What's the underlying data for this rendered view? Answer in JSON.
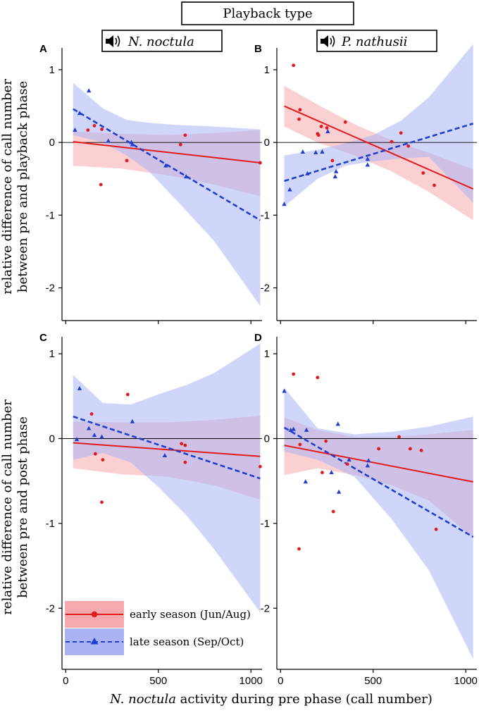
{
  "chart_data": {
    "type": "scatter",
    "header": "Playback type",
    "columns": [
      {
        "species": "N. noctula",
        "icon": "speaker-icon"
      },
      {
        "species": "P. nathusii",
        "icon": "speaker-icon"
      }
    ],
    "rows": [
      {
        "ylabel_line1": "relative difference of call number",
        "ylabel_line2": "between pre and playback phase"
      },
      {
        "ylabel_line1": "relative difference of call number",
        "ylabel_line2": "between pre and post phase"
      }
    ],
    "xlabel_italic": "N. noctula",
    "xlabel_rest": " activity during pre phase (call number)",
    "xlim": [
      -20,
      1060
    ],
    "x_ticks": [
      0,
      500,
      1000
    ],
    "x_tick_labels": [
      "0",
      "500",
      "1000"
    ],
    "y_ticks": [
      1,
      0,
      -1,
      -2
    ],
    "y_tick_labels": [
      "1",
      "0",
      "-1",
      "-2"
    ],
    "legend": {
      "location": "bottom-left",
      "entries": [
        {
          "key": "early",
          "label": "early season (Jun/Aug)"
        },
        {
          "key": "late",
          "label": "late season (Sep/Oct)"
        }
      ]
    },
    "colors": {
      "early": "#e31a1c",
      "late": "#1f3fd0",
      "early_band": "#f8a9ae",
      "late_band": "#aab4f4"
    },
    "panels": [
      {
        "letter": "A",
        "ylim": [
          -2.45,
          1.3
        ],
        "early": {
          "points": [
            [
              120,
              0.17
            ],
            [
              155,
              0.23
            ],
            [
              195,
              0.18
            ],
            [
              190,
              -0.58
            ],
            [
              330,
              -0.25
            ],
            [
              620,
              -0.03
            ],
            [
              645,
              0.1
            ],
            [
              1050,
              -0.28
            ]
          ],
          "fit": [
            [
              40,
              0.01
            ],
            [
              1050,
              -0.28
            ]
          ],
          "band_upper": [
            [
              40,
              0.15
            ],
            [
              300,
              0.12
            ],
            [
              550,
              0.1
            ],
            [
              800,
              0.13
            ],
            [
              1050,
              0.17
            ]
          ],
          "band_lower": [
            [
              40,
              -0.32
            ],
            [
              300,
              -0.36
            ],
            [
              550,
              -0.45
            ],
            [
              800,
              -0.58
            ],
            [
              1050,
              -0.74
            ]
          ]
        },
        "late": {
          "points": [
            [
              50,
              0.17
            ],
            [
              75,
              0.4
            ],
            [
              125,
              0.71
            ],
            [
              230,
              0.02
            ],
            [
              355,
              0.0
            ],
            [
              360,
              -0.03
            ],
            [
              540,
              -0.32
            ],
            [
              650,
              -0.47
            ]
          ],
          "fit": [
            [
              40,
              0.46
            ],
            [
              1050,
              -1.07
            ]
          ],
          "band_upper": [
            [
              40,
              0.82
            ],
            [
              200,
              0.47
            ],
            [
              330,
              0.31
            ],
            [
              450,
              0.27
            ],
            [
              600,
              0.24
            ],
            [
              800,
              0.22
            ],
            [
              1050,
              0.18
            ]
          ],
          "band_lower": [
            [
              40,
              0.1
            ],
            [
              200,
              0.0
            ],
            [
              330,
              -0.18
            ],
            [
              450,
              -0.4
            ],
            [
              600,
              -0.8
            ],
            [
              800,
              -1.35
            ],
            [
              1050,
              -2.25
            ]
          ]
        }
      },
      {
        "letter": "B",
        "ylim": [
          -2.45,
          1.3
        ],
        "early": {
          "points": [
            [
              70,
              1.06
            ],
            [
              100,
              0.32
            ],
            [
              105,
              0.45
            ],
            [
              200,
              0.12
            ],
            [
              205,
              0.1
            ],
            [
              220,
              0.22
            ],
            [
              250,
              0.2
            ],
            [
              280,
              -0.25
            ],
            [
              350,
              0.28
            ],
            [
              600,
              0.01
            ],
            [
              650,
              0.13
            ],
            [
              690,
              -0.05
            ],
            [
              770,
              -0.42
            ],
            [
              830,
              -0.59
            ]
          ],
          "fit": [
            [
              20,
              0.5
            ],
            [
              1040,
              -0.64
            ]
          ],
          "band_upper": [
            [
              20,
              0.78
            ],
            [
              200,
              0.52
            ],
            [
              400,
              0.25
            ],
            [
              600,
              0.03
            ],
            [
              800,
              -0.14
            ],
            [
              1040,
              -0.37
            ]
          ],
          "band_lower": [
            [
              20,
              0.22
            ],
            [
              200,
              0.0
            ],
            [
              400,
              -0.18
            ],
            [
              600,
              -0.4
            ],
            [
              800,
              -0.68
            ],
            [
              1040,
              -1.07
            ]
          ]
        },
        "late": {
          "points": [
            [
              20,
              -0.85
            ],
            [
              50,
              -0.65
            ],
            [
              120,
              -0.13
            ],
            [
              145,
              -0.43
            ],
            [
              190,
              -0.14
            ],
            [
              225,
              -0.13
            ],
            [
              255,
              0.15
            ],
            [
              295,
              -0.47
            ],
            [
              300,
              -0.4
            ],
            [
              470,
              -0.31
            ],
            [
              470,
              -0.23
            ]
          ],
          "fit": [
            [
              20,
              -0.53
            ],
            [
              1040,
              0.26
            ]
          ],
          "band_upper": [
            [
              20,
              -0.18
            ],
            [
              200,
              -0.1
            ],
            [
              350,
              -0.01
            ],
            [
              500,
              0.1
            ],
            [
              650,
              0.3
            ],
            [
              800,
              0.62
            ],
            [
              1040,
              1.35
            ]
          ],
          "band_lower": [
            [
              20,
              -0.88
            ],
            [
              200,
              -0.5
            ],
            [
              350,
              -0.32
            ],
            [
              500,
              -0.26
            ],
            [
              650,
              -0.22
            ],
            [
              800,
              -0.2
            ],
            [
              1040,
              -0.83
            ]
          ]
        }
      },
      {
        "letter": "C",
        "ylim": [
          -2.72,
          1.2
        ],
        "early": {
          "points": [
            [
              140,
              0.29
            ],
            [
              160,
              -0.18
            ],
            [
              195,
              -0.75
            ],
            [
              200,
              -0.25
            ],
            [
              335,
              0.52
            ],
            [
              625,
              -0.06
            ],
            [
              645,
              -0.08
            ],
            [
              645,
              -0.28
            ],
            [
              1050,
              -0.33
            ]
          ],
          "fit": [
            [
              40,
              -0.05
            ],
            [
              1050,
              -0.21
            ]
          ],
          "band_upper": [
            [
              40,
              0.2
            ],
            [
              300,
              0.19
            ],
            [
              550,
              0.19
            ],
            [
              800,
              0.22
            ],
            [
              1050,
              0.27
            ]
          ],
          "band_lower": [
            [
              40,
              -0.35
            ],
            [
              300,
              -0.42
            ],
            [
              550,
              -0.45
            ],
            [
              800,
              -0.55
            ],
            [
              1050,
              -0.72
            ]
          ]
        },
        "late": {
          "points": [
            [
              60,
              -0.01
            ],
            [
              75,
              0.59
            ],
            [
              125,
              0.12
            ],
            [
              155,
              0.04
            ],
            [
              195,
              0.02
            ],
            [
              360,
              0.2
            ],
            [
              535,
              -0.2
            ]
          ],
          "fit": [
            [
              40,
              0.26
            ],
            [
              1050,
              -0.47
            ]
          ],
          "band_upper": [
            [
              40,
              0.75
            ],
            [
              200,
              0.42
            ],
            [
              350,
              0.4
            ],
            [
              500,
              0.52
            ],
            [
              650,
              0.63
            ],
            [
              800,
              0.77
            ],
            [
              1050,
              1.12
            ]
          ],
          "band_lower": [
            [
              40,
              -0.25
            ],
            [
              200,
              -0.17
            ],
            [
              350,
              -0.28
            ],
            [
              500,
              -0.57
            ],
            [
              650,
              -0.9
            ],
            [
              800,
              -1.3
            ],
            [
              1050,
              -2.05
            ]
          ]
        }
      },
      {
        "letter": "D",
        "ylim": [
          -2.72,
          1.2
        ],
        "early": {
          "points": [
            [
              70,
              0.76
            ],
            [
              105,
              -0.07
            ],
            [
              100,
              -1.3
            ],
            [
              200,
              0.72
            ],
            [
              225,
              -0.4
            ],
            [
              245,
              -0.03
            ],
            [
              285,
              -0.86
            ],
            [
              360,
              -0.3
            ],
            [
              530,
              -0.12
            ],
            [
              640,
              0.02
            ],
            [
              700,
              -0.12
            ],
            [
              760,
              -0.14
            ],
            [
              840,
              -1.07
            ]
          ],
          "fit": [
            [
              20,
              -0.08
            ],
            [
              1040,
              -0.51
            ]
          ],
          "band_upper": [
            [
              20,
              0.25
            ],
            [
              200,
              0.1
            ],
            [
              400,
              0.02
            ],
            [
              600,
              0.02
            ],
            [
              800,
              0.05
            ],
            [
              1040,
              0.1
            ]
          ],
          "band_lower": [
            [
              20,
              -0.43
            ],
            [
              200,
              -0.35
            ],
            [
              400,
              -0.43
            ],
            [
              600,
              -0.55
            ],
            [
              800,
              -0.73
            ],
            [
              1040,
              -1.17
            ]
          ]
        },
        "late": {
          "points": [
            [
              20,
              0.56
            ],
            [
              55,
              0.1
            ],
            [
              70,
              0.11
            ],
            [
              135,
              -0.51
            ],
            [
              140,
              0.1
            ],
            [
              275,
              -0.4
            ],
            [
              310,
              0.17
            ],
            [
              315,
              -0.63
            ],
            [
              370,
              -0.25
            ],
            [
              475,
              -0.26
            ],
            [
              470,
              -0.32
            ]
          ],
          "fit": [
            [
              20,
              0.13
            ],
            [
              1040,
              -1.16
            ]
          ],
          "band_upper": [
            [
              20,
              0.6
            ],
            [
              200,
              0.12
            ],
            [
              400,
              0.05
            ],
            [
              600,
              0.08
            ],
            [
              800,
              0.14
            ],
            [
              1040,
              0.26
            ]
          ],
          "band_lower": [
            [
              20,
              -0.15
            ],
            [
              200,
              -0.25
            ],
            [
              400,
              -0.45
            ],
            [
              600,
              -0.95
            ],
            [
              800,
              -1.55
            ],
            [
              1040,
              -2.6
            ]
          ]
        }
      }
    ]
  }
}
